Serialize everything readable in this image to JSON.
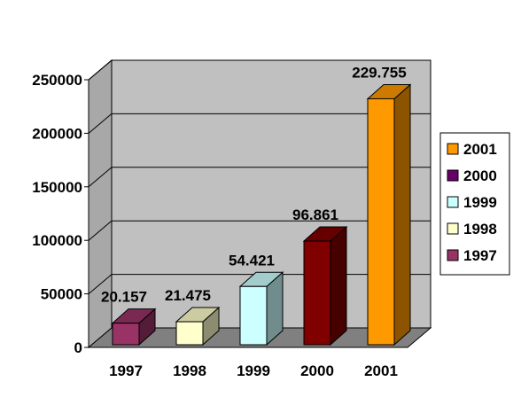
{
  "chart_data": {
    "type": "bar",
    "categories": [
      "1997",
      "1998",
      "1999",
      "2000",
      "2001"
    ],
    "values": [
      20157,
      21475,
      54421,
      96861,
      229755
    ],
    "data_labels": [
      "20.157",
      "21.475",
      "54.421",
      "96.861",
      "229.755"
    ],
    "ylim": [
      0,
      250000
    ],
    "yticks": [
      0,
      50000,
      100000,
      150000,
      200000,
      250000
    ],
    "grid": true,
    "three_d": true,
    "legend_position": "right",
    "colors": {
      "1997": "#993366",
      "1998": "#FFFFCC",
      "1999": "#CCFFFF",
      "2000": "#800000",
      "2001": "#FF9900"
    },
    "legend": [
      {
        "label": "2001",
        "color": "#FF9900"
      },
      {
        "label": "2000",
        "color": "#660066"
      },
      {
        "label": "1999",
        "color": "#CCFFFF"
      },
      {
        "label": "1998",
        "color": "#FFFFCC"
      },
      {
        "label": "1997",
        "color": "#993366"
      }
    ],
    "wall_color": "#C0C0C0"
  }
}
